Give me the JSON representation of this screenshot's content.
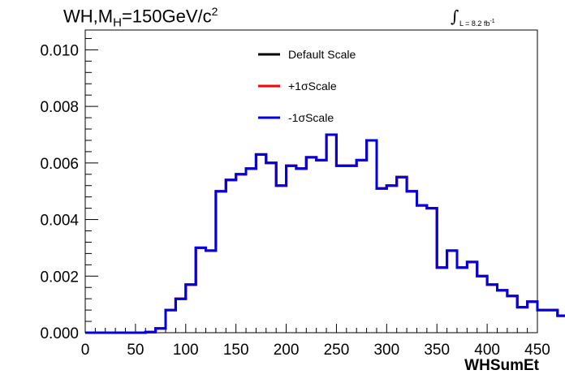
{
  "header": {
    "title_prefix": "WH,M",
    "title_sub": "H",
    "title_mid": "=150GeV/c",
    "title_sup": "2",
    "lumi_label": "L = 8.2 fb",
    "lumi_sup": "-1"
  },
  "chart_data": {
    "type": "line",
    "xlabel": "WHSumEt",
    "ylabel": "",
    "xlim": [
      0,
      450
    ],
    "ylim": [
      0,
      0.0107
    ],
    "x_ticks": [
      "0",
      "50",
      "100",
      "150",
      "200",
      "250",
      "300",
      "350",
      "400",
      "450"
    ],
    "y_ticks": [
      "0.000",
      "0.002",
      "0.004",
      "0.006",
      "0.008",
      "0.010"
    ],
    "grid": false,
    "legend_position": "top-center",
    "bin_width": 10,
    "bin_edges_start": 0,
    "series": [
      {
        "name": "Default Scale",
        "color": "#000000",
        "values": [
          0.0,
          0.0,
          0.0,
          0.0,
          0.0,
          0.0,
          2e-05,
          0.00015,
          0.0008,
          0.0012,
          0.0017,
          0.003,
          0.0029,
          0.005,
          0.0054,
          0.0056,
          0.0058,
          0.0063,
          0.006,
          0.0052,
          0.0059,
          0.0058,
          0.0062,
          0.0061,
          0.007,
          0.0059,
          0.0059,
          0.0061,
          0.0068,
          0.0051,
          0.0052,
          0.0055,
          0.005,
          0.0045,
          0.0044,
          0.0023,
          0.0029,
          0.0023,
          0.0025,
          0.002,
          0.0017,
          0.0015,
          0.0013,
          0.0009,
          0.0011,
          0.0008,
          0.0008,
          0.0006,
          0.0006,
          0.0004
        ]
      },
      {
        "name": "+1σScale",
        "color": "#ff0000",
        "values": [
          0.0,
          0.0,
          0.0,
          0.0,
          0.0,
          0.0,
          2e-05,
          0.00015,
          0.0008,
          0.0012,
          0.0017,
          0.003,
          0.0029,
          0.005,
          0.0054,
          0.0056,
          0.0058,
          0.0063,
          0.006,
          0.0052,
          0.0059,
          0.0058,
          0.0062,
          0.0061,
          0.007,
          0.0059,
          0.0059,
          0.0061,
          0.0068,
          0.0051,
          0.0052,
          0.0055,
          0.005,
          0.0045,
          0.0044,
          0.0023,
          0.0029,
          0.0023,
          0.0025,
          0.002,
          0.0017,
          0.0015,
          0.0013,
          0.0009,
          0.0011,
          0.0008,
          0.0008,
          0.0006,
          0.0006,
          0.0004
        ]
      },
      {
        "name": "-1σScale",
        "color": "#0000e0",
        "values": [
          0.0,
          0.0,
          0.0,
          0.0,
          0.0,
          0.0,
          2e-05,
          0.00015,
          0.0008,
          0.0012,
          0.0017,
          0.003,
          0.0029,
          0.005,
          0.0054,
          0.0056,
          0.0058,
          0.0063,
          0.006,
          0.0052,
          0.0059,
          0.0058,
          0.0062,
          0.0061,
          0.007,
          0.0059,
          0.0059,
          0.0061,
          0.0068,
          0.0051,
          0.0052,
          0.0055,
          0.005,
          0.0045,
          0.0044,
          0.0023,
          0.0029,
          0.0023,
          0.0025,
          0.002,
          0.0017,
          0.0015,
          0.0013,
          0.0009,
          0.0011,
          0.0008,
          0.0008,
          0.0006,
          0.0006,
          0.0004
        ]
      }
    ]
  }
}
